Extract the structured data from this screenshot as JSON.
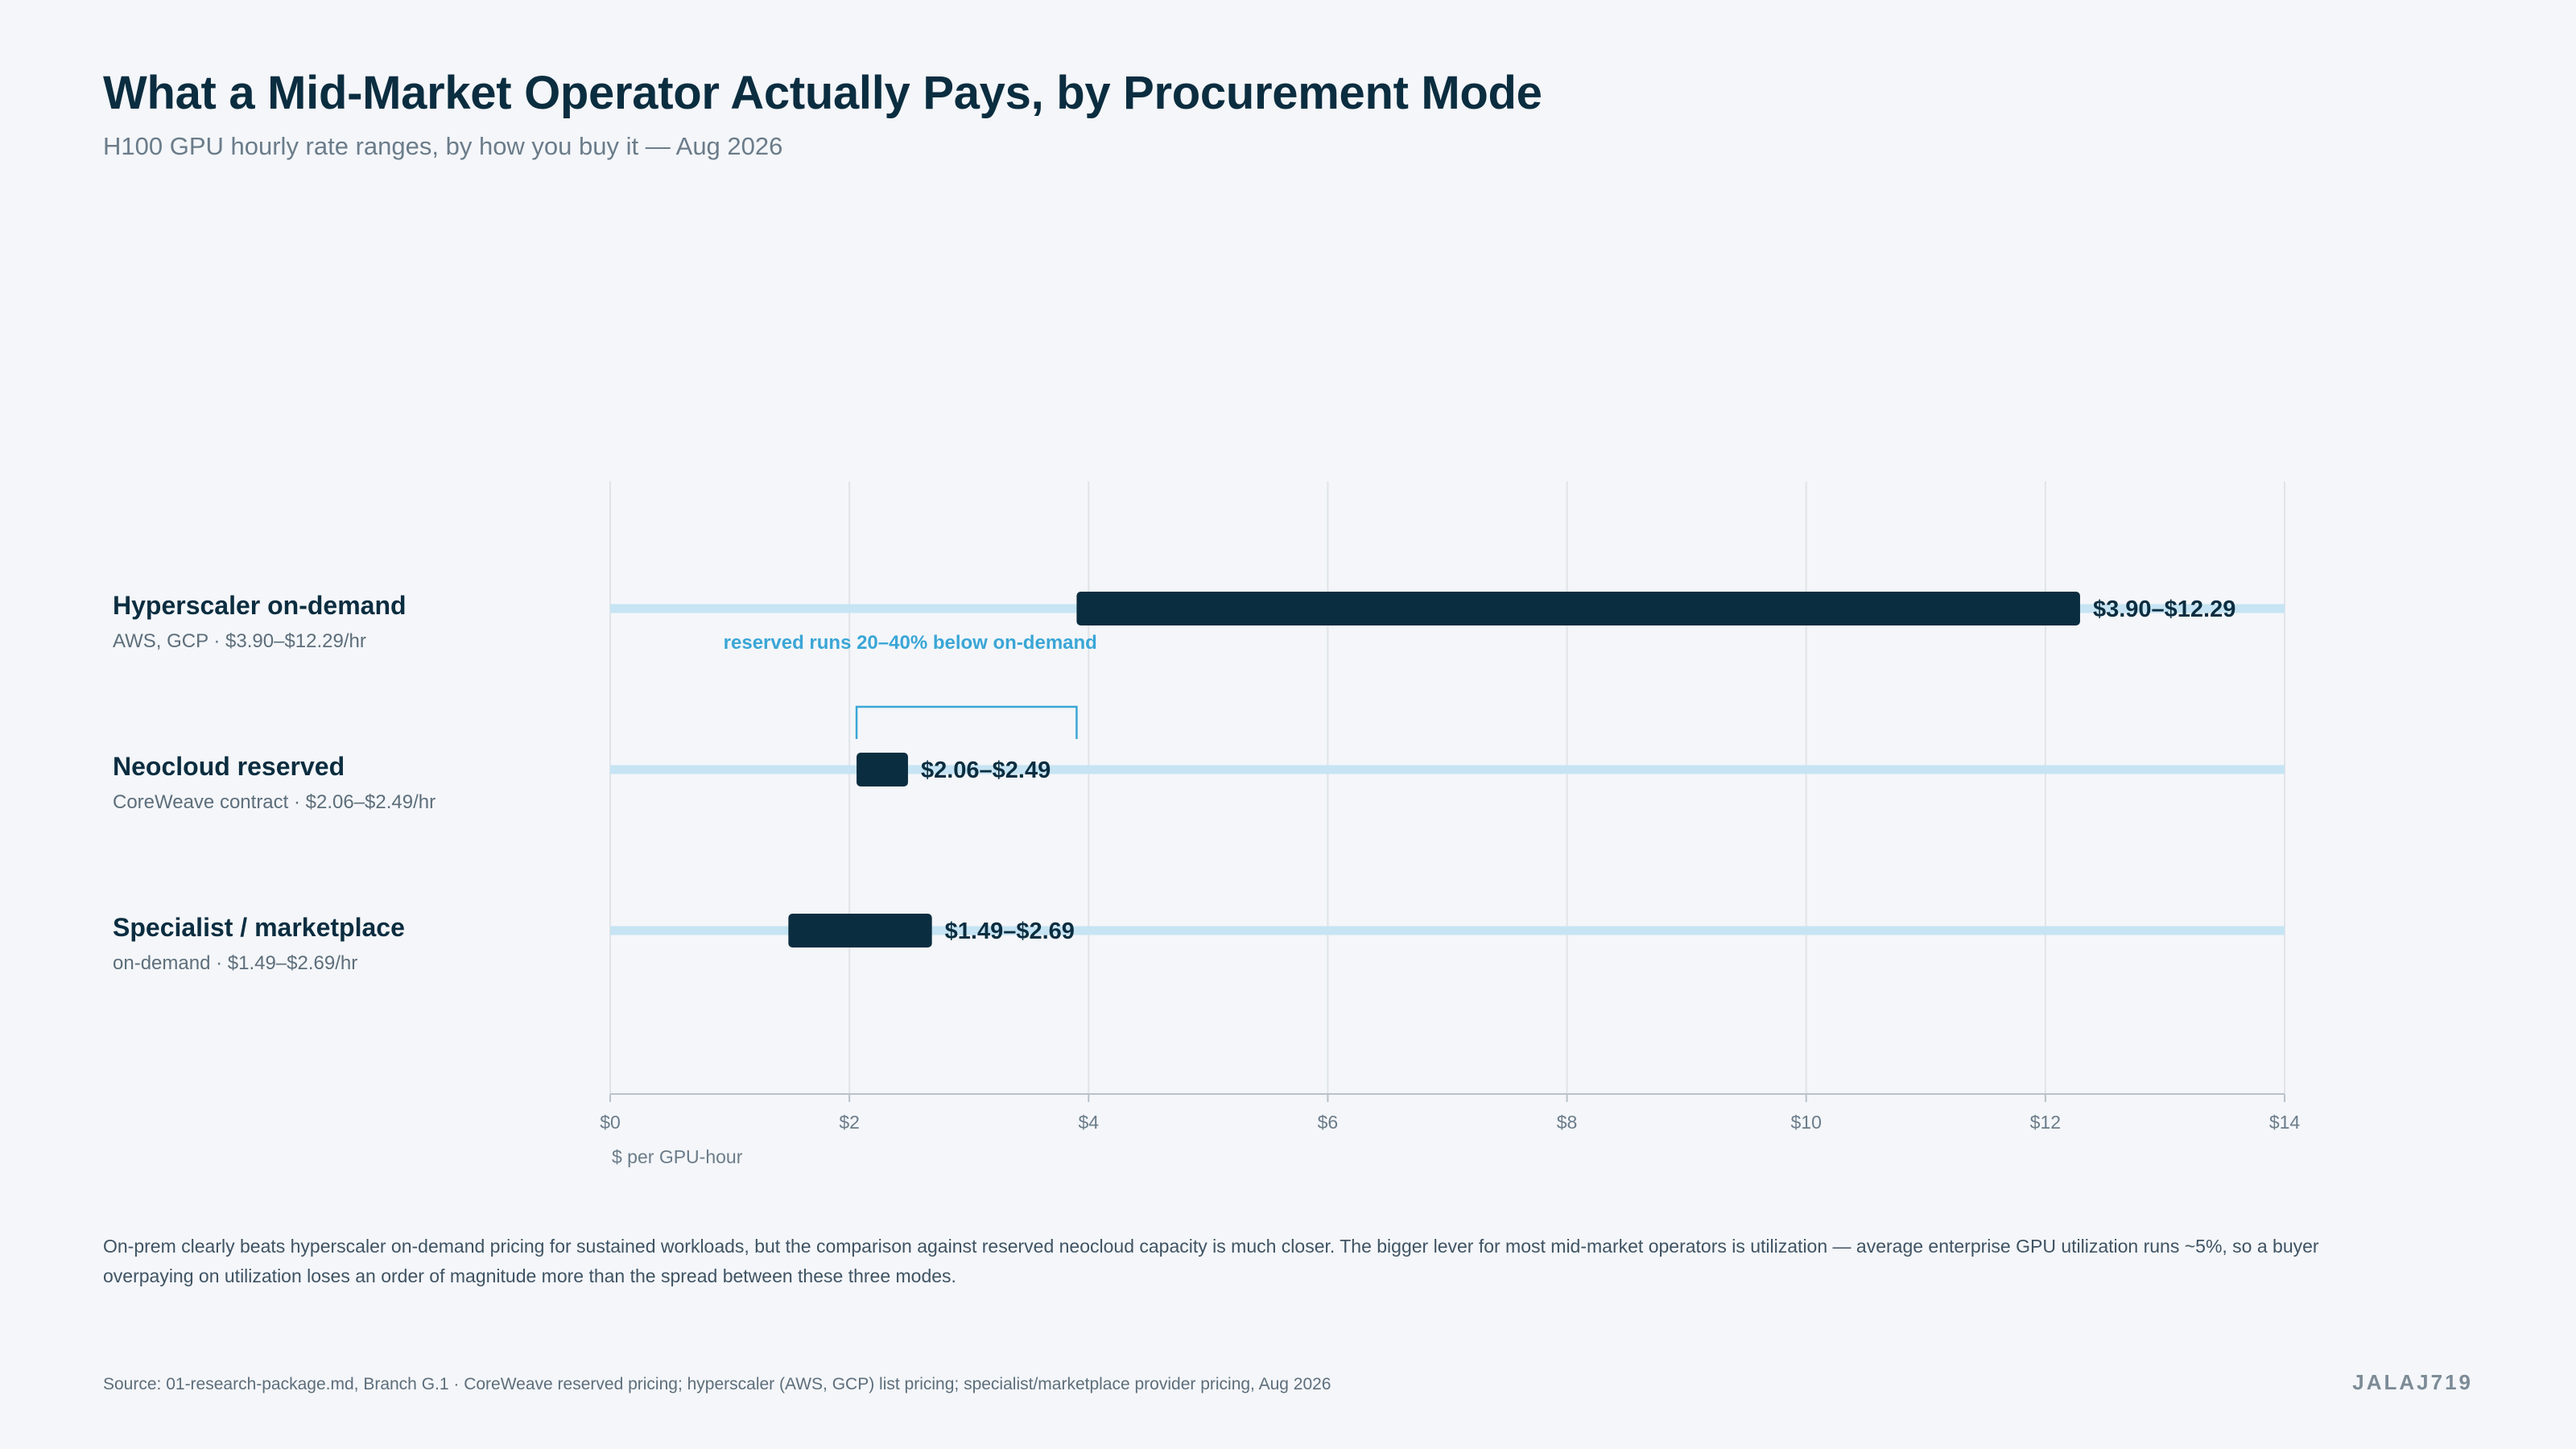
{
  "header": {
    "title": "What a Mid-Market Operator Actually Pays, by Procurement Mode",
    "subtitle": "H100 GPU hourly rate ranges, by how you buy it — Aug 2026"
  },
  "rows": [
    {
      "name": "Hyperscaler on-demand",
      "sub": "AWS, GCP · $3.90–$12.29/hr"
    },
    {
      "name": "Neocloud reserved",
      "sub": "CoreWeave contract · $2.06–$2.49/hr"
    },
    {
      "name": "Specialist / marketplace",
      "sub": "on-demand · $1.49–$2.69/hr"
    }
  ],
  "chart_data": {
    "type": "bar",
    "subtype": "range",
    "categories": [
      "Hyperscaler on-demand",
      "Neocloud reserved",
      "Specialist / marketplace"
    ],
    "ranges": [
      {
        "low": 3.9,
        "high": 12.29,
        "label": "$3.90–$12.29"
      },
      {
        "low": 2.06,
        "high": 2.49,
        "label": "$2.06–$2.49"
      },
      {
        "low": 1.49,
        "high": 2.69,
        "label": "$1.49–$2.69"
      }
    ],
    "xlim": [
      0,
      14
    ],
    "xticks": [
      0,
      2,
      4,
      6,
      8,
      10,
      12,
      14
    ],
    "xtick_labels": [
      "$0",
      "$2",
      "$4",
      "$6",
      "$8",
      "$10",
      "$12",
      "$14"
    ],
    "xlabel": "$ per GPU-hour",
    "grid": true,
    "annotation": {
      "text": "reserved runs 20–40% below on-demand",
      "from": 2.06,
      "to": 3.9
    },
    "colors": {
      "range": "#0b2d40",
      "track": "#c6e4f3",
      "annotation": "#3aa6d6",
      "grid": "#e0e4e9",
      "axis": "#b8c2cb"
    }
  },
  "caption": "On-prem clearly beats hyperscaler on-demand pricing for sustained workloads, but the comparison against reserved neocloud capacity is much closer. The bigger lever for most mid-market operators is utilization — average enterprise GPU utilization runs ~5%, so a buyer overpaying on utilization loses an order of magnitude more than the spread between these three modes.",
  "source": "Source: 01-research-package.md, Branch G.1 · CoreWeave reserved pricing; hyperscaler (AWS, GCP) list pricing; specialist/marketplace provider pricing, Aug 2026",
  "brand": "JALAJ719"
}
